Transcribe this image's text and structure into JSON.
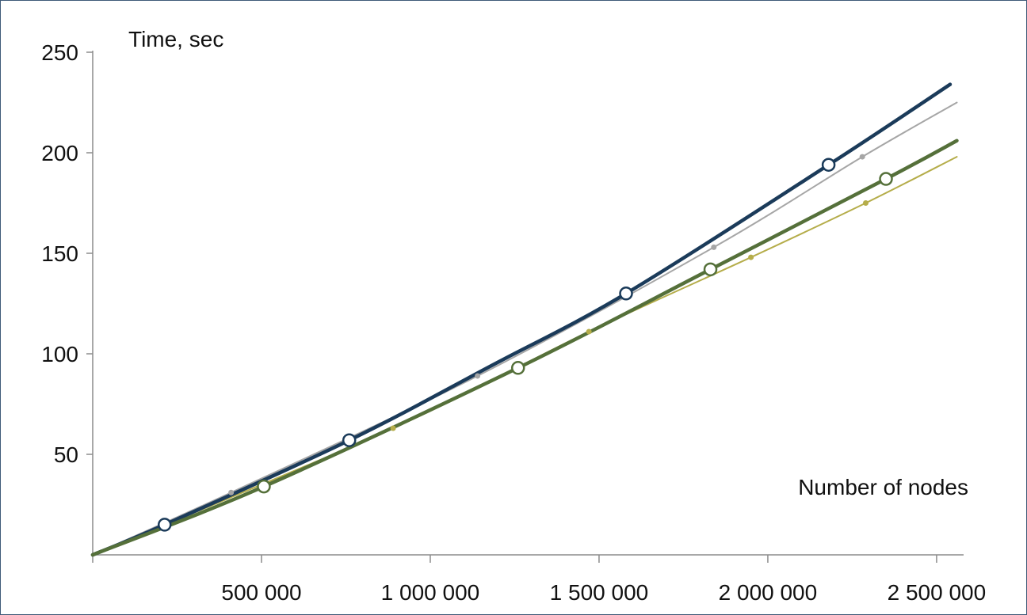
{
  "chart_data": {
    "type": "line",
    "xlabel": "Number of nodes",
    "ylabel": "Time, sec",
    "xlim": [
      0,
      2580000
    ],
    "ylim": [
      0,
      250
    ],
    "x_ticks": [
      500000,
      1000000,
      1500000,
      2000000,
      2500000
    ],
    "x_tick_labels": [
      "500 000",
      "1 000 000",
      "1 500 000",
      "2 000 000",
      "2 500 000"
    ],
    "y_ticks": [
      50,
      100,
      150,
      200,
      250
    ],
    "y_tick_labels": [
      "50",
      "100",
      "150",
      "200",
      "250"
    ],
    "grid": false,
    "series": [
      {
        "color": "#1b3b5a",
        "style": "thick",
        "x": [
          0,
          213000,
          760000,
          1180000,
          1580000,
          2180000,
          2540000
        ],
        "y": [
          0,
          15,
          57,
          94,
          130,
          194,
          234
        ],
        "markers": {
          "x": [
            213000,
            760000,
            1580000,
            2180000
          ],
          "y": [
            15,
            57,
            130,
            194
          ],
          "shape": "hollow-circle"
        }
      },
      {
        "color": "#a6a6a6",
        "style": "thin",
        "x": [
          0,
          410000,
          1140000,
          1840000,
          2280000,
          2560000
        ],
        "y": [
          0,
          31,
          89,
          153,
          198,
          225
        ],
        "markers": {
          "x": [
            410000,
            1140000,
            1840000,
            2280000
          ],
          "y": [
            31,
            89,
            153,
            198
          ],
          "shape": "dot"
        }
      },
      {
        "color": "#55703a",
        "style": "thick",
        "x": [
          0,
          507000,
          1260000,
          1830000,
          2350000,
          2560000
        ],
        "y": [
          0,
          34,
          93,
          142,
          187,
          206
        ],
        "markers": {
          "x": [
            507000,
            1260000,
            1830000,
            2350000
          ],
          "y": [
            34,
            93,
            142,
            187
          ],
          "shape": "hollow-circle"
        }
      },
      {
        "color": "#b5ad4a",
        "style": "thin",
        "x": [
          0,
          890000,
          1470000,
          1950000,
          2290000,
          2560000
        ],
        "y": [
          0,
          63,
          111,
          148,
          175,
          198
        ],
        "markers": {
          "x": [
            890000,
            1470000,
            1950000,
            2290000
          ],
          "y": [
            63,
            111,
            148,
            175
          ],
          "shape": "dot"
        }
      }
    ]
  }
}
